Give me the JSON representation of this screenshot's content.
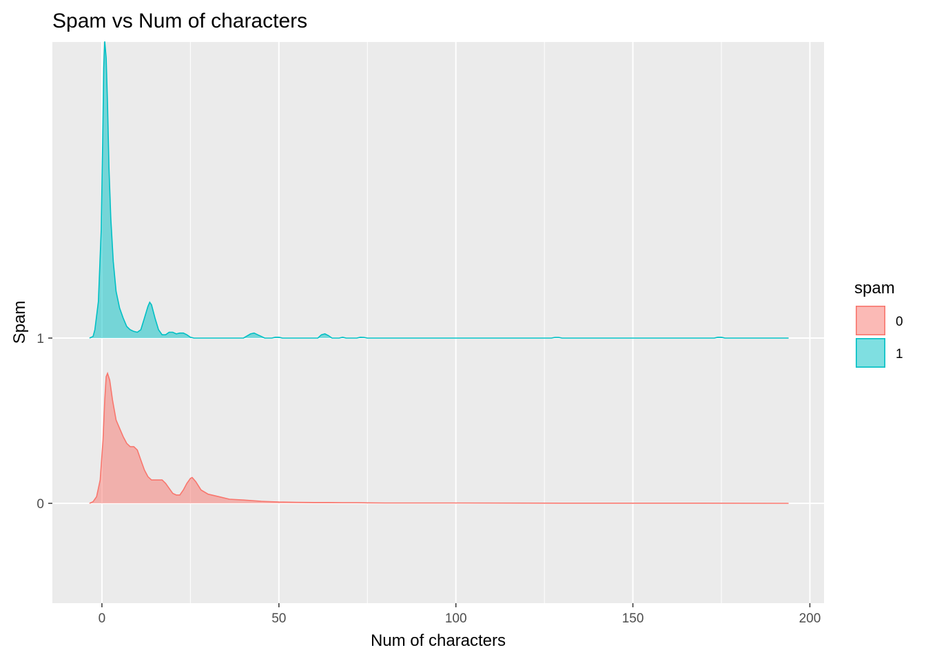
{
  "chart_data": {
    "type": "area",
    "subtype": "ridgeline-density",
    "title": "Spam vs Num of characters",
    "xlabel": "Num of characters",
    "ylabel": "Spam",
    "xlim": [
      -14,
      204
    ],
    "x_ticks": [
      0,
      50,
      100,
      150,
      200
    ],
    "categories": [
      "0",
      "1"
    ],
    "grid": true,
    "legend": {
      "title": "spam",
      "position": "right",
      "entries": [
        "0",
        "1"
      ]
    },
    "series": [
      {
        "name": "0",
        "category": "0",
        "fill": "#F8766D",
        "line": "#F8766D",
        "points": [
          [
            -3.5,
            0.0
          ],
          [
            -2.5,
            0.01
          ],
          [
            -1.5,
            0.04
          ],
          [
            -0.5,
            0.14
          ],
          [
            0.3,
            0.38
          ],
          [
            0.8,
            0.62
          ],
          [
            1.2,
            0.76
          ],
          [
            1.6,
            0.78
          ],
          [
            2.2,
            0.74
          ],
          [
            3,
            0.62
          ],
          [
            4,
            0.5
          ],
          [
            5,
            0.45
          ],
          [
            6,
            0.4
          ],
          [
            7,
            0.36
          ],
          [
            8,
            0.34
          ],
          [
            9,
            0.34
          ],
          [
            10,
            0.32
          ],
          [
            11,
            0.26
          ],
          [
            12,
            0.2
          ],
          [
            13,
            0.16
          ],
          [
            14,
            0.14
          ],
          [
            15,
            0.14
          ],
          [
            16,
            0.14
          ],
          [
            17,
            0.14
          ],
          [
            18,
            0.12
          ],
          [
            19,
            0.09
          ],
          [
            20,
            0.06
          ],
          [
            21,
            0.05
          ],
          [
            22,
            0.05
          ],
          [
            23,
            0.08
          ],
          [
            24,
            0.12
          ],
          [
            25,
            0.15
          ],
          [
            25.5,
            0.155
          ],
          [
            26.5,
            0.13
          ],
          [
            28,
            0.08
          ],
          [
            30,
            0.055
          ],
          [
            33,
            0.04
          ],
          [
            36,
            0.025
          ],
          [
            40,
            0.02
          ],
          [
            45,
            0.012
          ],
          [
            50,
            0.008
          ],
          [
            55,
            0.006
          ],
          [
            60,
            0.005
          ],
          [
            64,
            0.005
          ],
          [
            68,
            0.004
          ],
          [
            72,
            0.004
          ],
          [
            75,
            0.003
          ],
          [
            80,
            0.002
          ],
          [
            100,
            0.002
          ],
          [
            130,
            0.001
          ],
          [
            160,
            0.001
          ],
          [
            194,
            0.0
          ]
        ]
      },
      {
        "name": "1",
        "category": "1",
        "fill": "#00BFC4",
        "line": "#00BFC4",
        "points": [
          [
            -3.5,
            0.0
          ],
          [
            -2.5,
            0.01
          ],
          [
            -2,
            0.05
          ],
          [
            -1,
            0.22
          ],
          [
            -0.2,
            0.65
          ],
          [
            0.2,
            1.18
          ],
          [
            0.5,
            1.62
          ],
          [
            0.8,
            1.78
          ],
          [
            1.2,
            1.68
          ],
          [
            1.6,
            1.4
          ],
          [
            2.0,
            1.02
          ],
          [
            2.5,
            0.72
          ],
          [
            3.2,
            0.46
          ],
          [
            4,
            0.28
          ],
          [
            5,
            0.18
          ],
          [
            6,
            0.12
          ],
          [
            7,
            0.07
          ],
          [
            8,
            0.05
          ],
          [
            9,
            0.04
          ],
          [
            10,
            0.035
          ],
          [
            11,
            0.05
          ],
          [
            12,
            0.12
          ],
          [
            13,
            0.19
          ],
          [
            13.5,
            0.215
          ],
          [
            14,
            0.2
          ],
          [
            15,
            0.12
          ],
          [
            16,
            0.05
          ],
          [
            17,
            0.02
          ],
          [
            18,
            0.02
          ],
          [
            19,
            0.035
          ],
          [
            20,
            0.035
          ],
          [
            21,
            0.025
          ],
          [
            22,
            0.03
          ],
          [
            23,
            0.03
          ],
          [
            24,
            0.02
          ],
          [
            25,
            0.005
          ],
          [
            26,
            0.0
          ],
          [
            40,
            0.0
          ],
          [
            42,
            0.025
          ],
          [
            43,
            0.03
          ],
          [
            44,
            0.02
          ],
          [
            46,
            0.0
          ],
          [
            48,
            0.0
          ],
          [
            49,
            0.005
          ],
          [
            50,
            0.005
          ],
          [
            51,
            0.0
          ],
          [
            61,
            0.0
          ],
          [
            62,
            0.02
          ],
          [
            63,
            0.025
          ],
          [
            64,
            0.015
          ],
          [
            65,
            0.0
          ],
          [
            67,
            0.0
          ],
          [
            68,
            0.005
          ],
          [
            69,
            0.0
          ],
          [
            72,
            0.0
          ],
          [
            73,
            0.005
          ],
          [
            74,
            0.004
          ],
          [
            75,
            0.0
          ],
          [
            127,
            0.0
          ],
          [
            128,
            0.004
          ],
          [
            129,
            0.004
          ],
          [
            130,
            0.0
          ],
          [
            173,
            0.0
          ],
          [
            174,
            0.005
          ],
          [
            175,
            0.005
          ],
          [
            176,
            0.0
          ],
          [
            194,
            0.0
          ]
        ]
      }
    ],
    "colors": {
      "panel": "#EBEBEB",
      "grid": "#FFFFFF",
      "tick": "#333333"
    }
  }
}
